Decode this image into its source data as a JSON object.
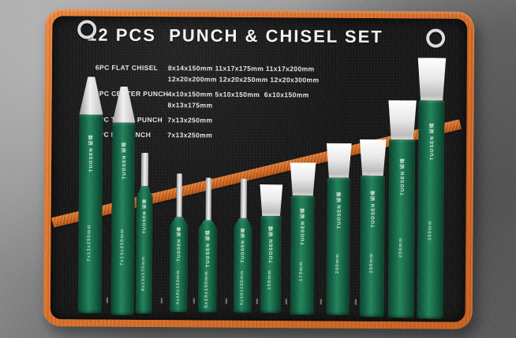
{
  "product": {
    "title": "12 PCS  PUNCH & CHISEL SET",
    "brand": "TUOSEN 拓森"
  },
  "specs": [
    {
      "label": "6PC FLAT CHISEL",
      "lines": [
        "8x14x150mm 11x17x175mm 11x17x200mm",
        "12x20x200mm 12x20x250mm 12x20x300mm"
      ]
    },
    {
      "label": "4PC CENTER PUNCH",
      "lines": [
        "4x10x150mm 5x10x150mm  6x10x150mm",
        "8x13x175mm"
      ]
    },
    {
      "label": "1PC TAPER PUNCH",
      "lines": [
        "7x13x250mm"
      ]
    },
    {
      "label": "1PC PIN PUNCH",
      "lines": [
        "7x13x250mm"
      ]
    }
  ],
  "tools": [
    {
      "name": "taper-punch-250",
      "type": "punch",
      "brand": "TUOSEN 拓森",
      "size": "7x13x250mm"
    },
    {
      "name": "pin-punch-250",
      "type": "punch",
      "brand": "TUOSEN 拓森",
      "size": "7x13x250mm"
    },
    {
      "name": "center-punch-175",
      "type": "pin",
      "brand": "TUOSEN 拓森",
      "size": "8x13x175mm"
    },
    {
      "name": "center-punch-4x150",
      "type": "pin",
      "brand": "TUOSEN 拓森",
      "size": "4x10x150mm"
    },
    {
      "name": "center-punch-5x150",
      "type": "pin",
      "brand": "TUOSEN 拓森",
      "size": "5x10x150mm"
    },
    {
      "name": "center-punch-6x150",
      "type": "pin",
      "brand": "TUOSEN 拓森",
      "size": "6x10x150mm"
    },
    {
      "name": "flat-chisel-150",
      "type": "chisel",
      "brand": "TUOSEN 拓森",
      "size": "150mm"
    },
    {
      "name": "flat-chisel-175",
      "type": "chisel",
      "brand": "TUOSEN 拓森",
      "size": "175mm"
    },
    {
      "name": "flat-chisel-200a",
      "type": "chisel",
      "brand": "TUOSEN 拓森",
      "size": "200mm"
    },
    {
      "name": "flat-chisel-200b",
      "type": "chisel",
      "brand": "TUOSEN 拓森",
      "size": "200mm"
    },
    {
      "name": "flat-chisel-250",
      "type": "chisel",
      "brand": "TUOSEN 拓森",
      "size": "250mm"
    },
    {
      "name": "flat-chisel-300",
      "type": "chisel",
      "brand": "TUOSEN 拓森",
      "size": "300mm"
    }
  ],
  "colors": {
    "trim_orange": "#e0762f",
    "tool_green": "#1b6e4e",
    "pouch_black": "#171717",
    "steel_silver": "#d9d9d9",
    "text_white": "#f2f2f2"
  }
}
